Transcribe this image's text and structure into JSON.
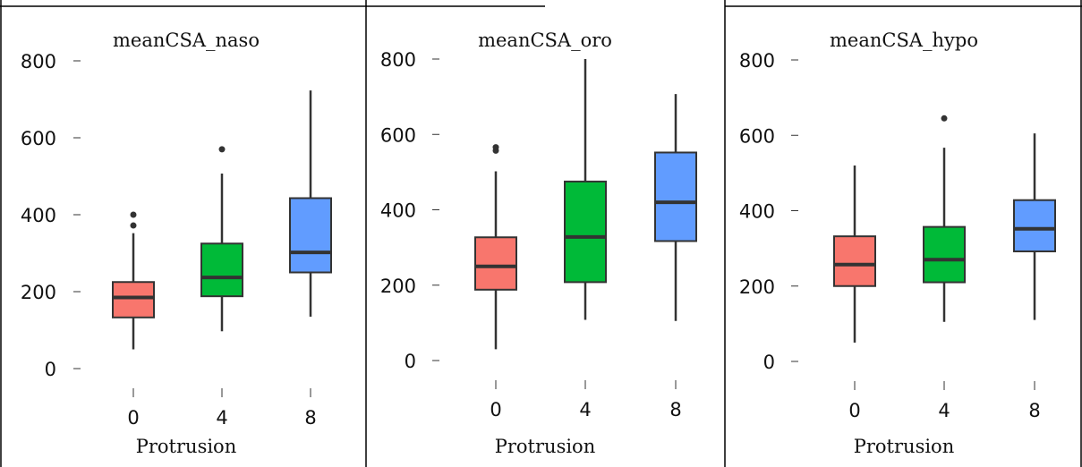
{
  "figure": {
    "colors": {
      "0": "#f8766d",
      "4": "#00ba38",
      "8": "#619cff",
      "line": "#333333",
      "frame": "#000000"
    }
  },
  "chart_data": [
    {
      "type": "boxplot",
      "title": "meanCSA_naso",
      "xlabel": "Protrusion",
      "ylabel": "",
      "categories": [
        "0",
        "4",
        "8"
      ],
      "ylim": [
        0,
        800
      ],
      "yticks": [
        0,
        200,
        400,
        600,
        800
      ],
      "grid": false,
      "boxes": [
        {
          "category": "0",
          "whisker_low": 50,
          "q1": 133,
          "median": 185,
          "q3": 225,
          "whisker_high": 352,
          "outliers": [
            372,
            400
          ]
        },
        {
          "category": "4",
          "whisker_low": 97,
          "q1": 188,
          "median": 237,
          "q3": 325,
          "whisker_high": 507,
          "outliers": [
            570
          ]
        },
        {
          "category": "8",
          "whisker_low": 135,
          "q1": 250,
          "median": 302,
          "q3": 443,
          "whisker_high": 723,
          "outliers": []
        }
      ]
    },
    {
      "type": "boxplot",
      "title": "meanCSA_oro",
      "xlabel": "Protrusion",
      "ylabel": "",
      "categories": [
        "0",
        "4",
        "8"
      ],
      "ylim": [
        0,
        800
      ],
      "yticks": [
        0,
        200,
        400,
        600,
        800
      ],
      "grid": false,
      "boxes": [
        {
          "category": "0",
          "whisker_low": 30,
          "q1": 188,
          "median": 250,
          "q3": 327,
          "whisker_high": 502,
          "outliers": [
            557,
            566
          ]
        },
        {
          "category": "4",
          "whisker_low": 108,
          "q1": 208,
          "median": 328,
          "q3": 475,
          "whisker_high": 800,
          "outliers": []
        },
        {
          "category": "8",
          "whisker_low": 105,
          "q1": 317,
          "median": 420,
          "q3": 552,
          "whisker_high": 707,
          "outliers": []
        }
      ]
    },
    {
      "type": "boxplot",
      "title": "meanCSA_hypo",
      "xlabel": "Protrusion",
      "ylabel": "",
      "categories": [
        "0",
        "4",
        "8"
      ],
      "ylim": [
        0,
        800
      ],
      "yticks": [
        0,
        200,
        400,
        600,
        800
      ],
      "grid": false,
      "boxes": [
        {
          "category": "0",
          "whisker_low": 50,
          "q1": 200,
          "median": 257,
          "q3": 332,
          "whisker_high": 520,
          "outliers": []
        },
        {
          "category": "4",
          "whisker_low": 105,
          "q1": 210,
          "median": 270,
          "q3": 357,
          "whisker_high": 567,
          "outliers": [
            645
          ]
        },
        {
          "category": "8",
          "whisker_low": 110,
          "q1": 292,
          "median": 352,
          "q3": 428,
          "whisker_high": 605,
          "outliers": []
        }
      ]
    }
  ]
}
